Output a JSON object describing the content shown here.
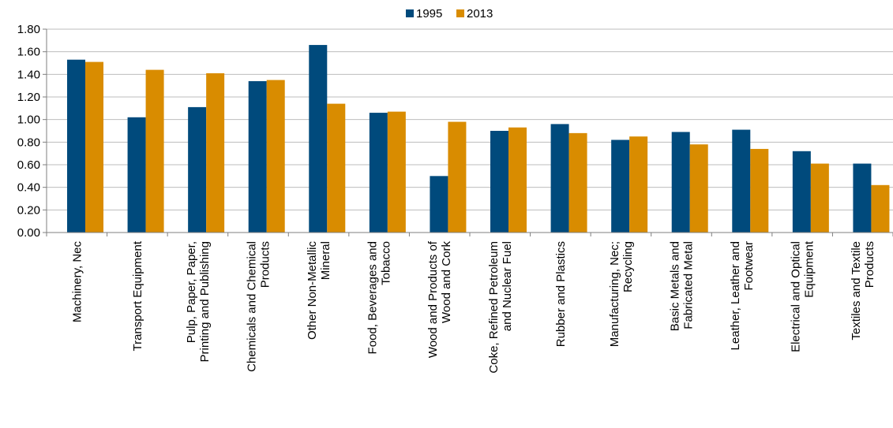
{
  "chart_data": {
    "type": "bar",
    "title": "",
    "xlabel": "",
    "ylabel": "",
    "ylim": [
      0,
      1.8
    ],
    "yticks": [
      "0.00",
      "0.20",
      "0.40",
      "0.60",
      "0.80",
      "1.00",
      "1.20",
      "1.40",
      "1.60",
      "1.80"
    ],
    "grid": "horizontal",
    "legend_position": "top-center",
    "categories": [
      [
        "Machinery, Nec"
      ],
      [
        "Transport Equipment"
      ],
      [
        "Pulp, Paper, Paper,",
        "Printing and Publishing"
      ],
      [
        "Chemicals and Chemical",
        "Products"
      ],
      [
        "Other Non-Metallic",
        "Mineral"
      ],
      [
        "Food, Beverages and",
        "Tobacco"
      ],
      [
        "Wood and Products of",
        "Wood and Cork"
      ],
      [
        "Coke, Refined Petroleum",
        "and Nuclear Fuel"
      ],
      [
        "Rubber and Plastics"
      ],
      [
        "Manufacturing, Nec;",
        "Recycling"
      ],
      [
        "Basic Metals and",
        "Fabricated Metal"
      ],
      [
        "Leather, Leather and",
        "Footwear"
      ],
      [
        "Electrical and Optical",
        "Equipment"
      ],
      [
        "Textiles and Textile",
        "Products"
      ]
    ],
    "series": [
      {
        "name": "1995",
        "color": "#004a7c",
        "values": [
          1.53,
          1.02,
          1.11,
          1.34,
          1.66,
          1.06,
          0.5,
          0.9,
          0.96,
          0.82,
          0.89,
          0.91,
          0.72,
          0.61
        ]
      },
      {
        "name": "2013",
        "color": "#d98c00",
        "values": [
          1.51,
          1.44,
          1.41,
          1.35,
          1.14,
          1.07,
          0.98,
          0.93,
          0.88,
          0.85,
          0.78,
          0.74,
          0.61,
          0.42
        ]
      }
    ]
  }
}
